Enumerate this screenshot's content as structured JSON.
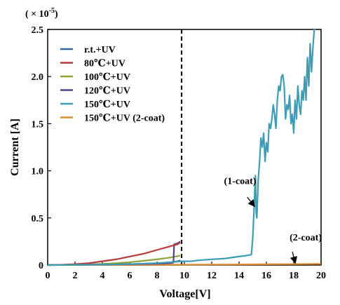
{
  "chart_data": {
    "type": "line",
    "scale_label": "( × 10",
    "scale_exp": "-5",
    "scale_close": ")",
    "xlabel": "Voltage[V]",
    "ylabel": "Current [A]",
    "xlim": [
      0,
      20
    ],
    "ylim": [
      0,
      2.5
    ],
    "xticks": [
      "0",
      "2",
      "4",
      "6",
      "8",
      "10",
      "12",
      "14",
      "16",
      "18",
      "20"
    ],
    "yticks": [
      "0",
      "0.5",
      "1.0",
      "1.5",
      "2.0",
      "2.5"
    ],
    "grid": false,
    "legend_position": "top-left",
    "reference_line_x": 9.8,
    "series": [
      {
        "name": "r.t.+UV",
        "color": "#2b6a9e",
        "x": [
          0,
          2,
          4,
          6,
          8,
          9,
          9.5,
          9.7
        ],
        "y": [
          0,
          0.002,
          0.005,
          0.01,
          0.02,
          0.03,
          0.04,
          0.05
        ]
      },
      {
        "name": "80℃+UV",
        "color": "#b83a3a",
        "x": [
          0,
          1,
          2,
          3,
          4,
          5,
          6,
          7,
          8,
          9,
          9.5,
          9.7
        ],
        "y": [
          0,
          0.003,
          0.01,
          0.02,
          0.04,
          0.06,
          0.09,
          0.12,
          0.16,
          0.2,
          0.22,
          0.24
        ]
      },
      {
        "name": "100℃+UV",
        "color": "#8fa33a",
        "x": [
          0,
          2,
          4,
          5,
          6,
          7,
          8,
          9,
          9.7
        ],
        "y": [
          0,
          0.004,
          0.012,
          0.02,
          0.03,
          0.045,
          0.06,
          0.08,
          0.1
        ]
      },
      {
        "name": "120℃+UV",
        "color": "#5a3f8f",
        "x": [
          0,
          2,
          4,
          6,
          7,
          8,
          9,
          9.2,
          9.25,
          9.5,
          9.7
        ],
        "y": [
          0,
          0.002,
          0.005,
          0.01,
          0.012,
          0.015,
          0.02,
          0.025,
          0.22,
          0.23,
          0.25
        ]
      },
      {
        "name": "150℃+UV",
        "color": "#3d9db5",
        "x": [
          0,
          2,
          4,
          6,
          8,
          9,
          9.8,
          10.5,
          11,
          12,
          13,
          14,
          14.5,
          14.9,
          15.0,
          15.1,
          15.2,
          15.25,
          15.3,
          15.4,
          15.5,
          15.6,
          15.7,
          15.8,
          15.9,
          16.0,
          16.1,
          16.2,
          16.3,
          16.4,
          16.5,
          16.6,
          16.7,
          16.8,
          16.9,
          17.0,
          17.1,
          17.2,
          17.3,
          17.4,
          17.5,
          17.6,
          17.7,
          17.8,
          17.9,
          18.0,
          18.1,
          18.2,
          18.3,
          18.4,
          18.5,
          18.6,
          18.7,
          18.8,
          18.9,
          19.0,
          19.1,
          19.2,
          19.3,
          19.4,
          19.5,
          19.6
        ],
        "y": [
          0,
          0.002,
          0.005,
          0.01,
          0.02,
          0.03,
          0.04,
          0.04,
          0.05,
          0.06,
          0.07,
          0.09,
          0.1,
          0.11,
          0.28,
          0.6,
          0.95,
          0.55,
          0.5,
          0.9,
          1.1,
          1.35,
          1.25,
          1.4,
          1.1,
          1.3,
          1.2,
          1.5,
          1.45,
          1.55,
          1.7,
          1.6,
          1.45,
          1.75,
          1.9,
          1.85,
          2.0,
          2.02,
          1.9,
          1.55,
          1.7,
          1.65,
          1.8,
          1.5,
          1.6,
          1.4,
          1.75,
          1.55,
          1.9,
          1.7,
          1.6,
          1.85,
          1.75,
          2.0,
          1.75,
          2.2,
          1.9,
          2.35,
          2.05,
          2.3,
          2.5,
          2.5
        ]
      },
      {
        "name": "150℃+UV  (2-coat)",
        "color": "#e08a30",
        "x": [
          0,
          5,
          10,
          12,
          14,
          16,
          18,
          20
        ],
        "y": [
          0,
          0.002,
          0.004,
          0.005,
          0.006,
          0.008,
          0.01,
          0.012
        ]
      }
    ],
    "annotations": [
      {
        "text": "(1-coat)",
        "text_x": 12.9,
        "text_y": 0.86,
        "arrow_from": [
          14.6,
          0.72
        ],
        "arrow_to": [
          15.1,
          0.63
        ]
      },
      {
        "text": "(2-coat)",
        "text_x": 17.7,
        "text_y": 0.26,
        "arrow_from": [
          17.9,
          0.14
        ],
        "arrow_to": [
          18.1,
          0.03
        ]
      }
    ]
  }
}
